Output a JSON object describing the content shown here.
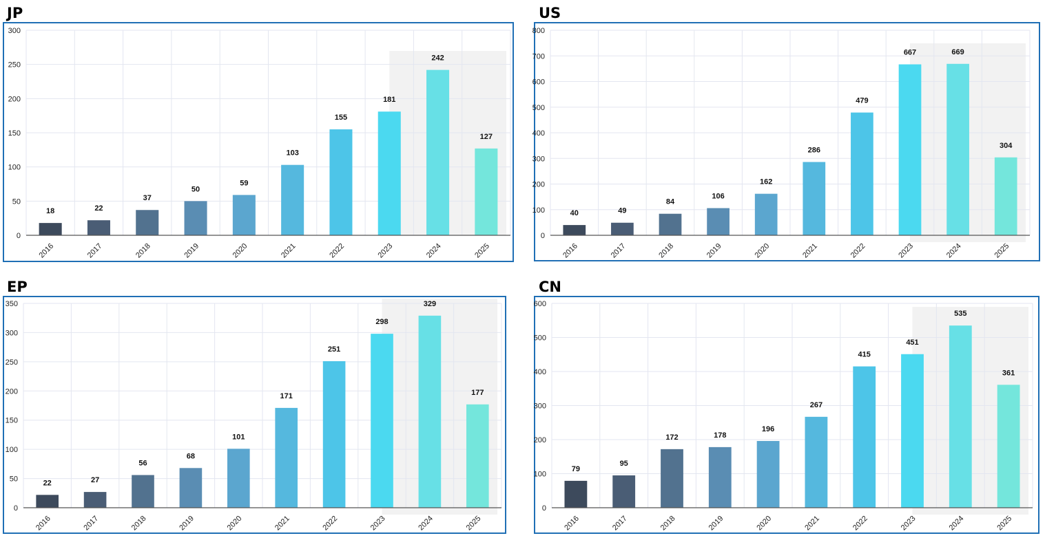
{
  "chart_data": [
    {
      "type": "bar",
      "title": "JP",
      "categories": [
        "2016",
        "2017",
        "2018",
        "2019",
        "2020",
        "2021",
        "2022",
        "2023",
        "2024",
        "2025"
      ],
      "values": [
        18,
        22,
        37,
        50,
        59,
        103,
        155,
        181,
        242,
        127
      ],
      "ylim": [
        0,
        300
      ],
      "yticks": [
        0,
        50,
        100,
        150,
        200,
        250,
        300
      ],
      "grid": true,
      "highlight_range": [
        "2023",
        "2025"
      ]
    },
    {
      "type": "bar",
      "title": "US",
      "categories": [
        "2016",
        "2017",
        "2018",
        "2019",
        "2020",
        "2021",
        "2022",
        "2023",
        "2024",
        "2025"
      ],
      "values": [
        40,
        49,
        84,
        106,
        162,
        286,
        479,
        667,
        669,
        304
      ],
      "ylim": [
        0,
        800
      ],
      "yticks": [
        0,
        100,
        200,
        300,
        400,
        500,
        600,
        700,
        800
      ],
      "grid": true,
      "highlight_range": [
        "2023",
        "2025"
      ]
    },
    {
      "type": "bar",
      "title": "EP",
      "categories": [
        "2016",
        "2017",
        "2018",
        "2019",
        "2020",
        "2021",
        "2022",
        "2023",
        "2024",
        "2025"
      ],
      "values": [
        22,
        27,
        56,
        68,
        101,
        171,
        251,
        298,
        329,
        177
      ],
      "ylim": [
        0,
        350
      ],
      "yticks": [
        0,
        50,
        100,
        150,
        200,
        250,
        300,
        350
      ],
      "grid": true,
      "highlight_range": [
        "2023",
        "2025"
      ]
    },
    {
      "type": "bar",
      "title": "CN",
      "categories": [
        "2016",
        "2017",
        "2018",
        "2019",
        "2020",
        "2021",
        "2022",
        "2023",
        "2024",
        "2025"
      ],
      "values": [
        79,
        95,
        172,
        178,
        196,
        267,
        415,
        451,
        535,
        361
      ],
      "ylim": [
        0,
        600
      ],
      "yticks": [
        0,
        100,
        200,
        300,
        400,
        500,
        600
      ],
      "grid": true,
      "highlight_range": [
        "2023",
        "2025"
      ]
    }
  ],
  "colors": {
    "bars": [
      "#3d4a5c",
      "#4a5d75",
      "#52728f",
      "#5a8db3",
      "#5ba6cf",
      "#55b8de",
      "#4dc5e8",
      "#4bd9f0",
      "#67e0e6",
      "#74e6dc"
    ],
    "frame": "#1f6fb5",
    "grid": "#e3e6f0",
    "highlight": "#f2f2f2",
    "axis": "#555555",
    "text": "#222222"
  }
}
